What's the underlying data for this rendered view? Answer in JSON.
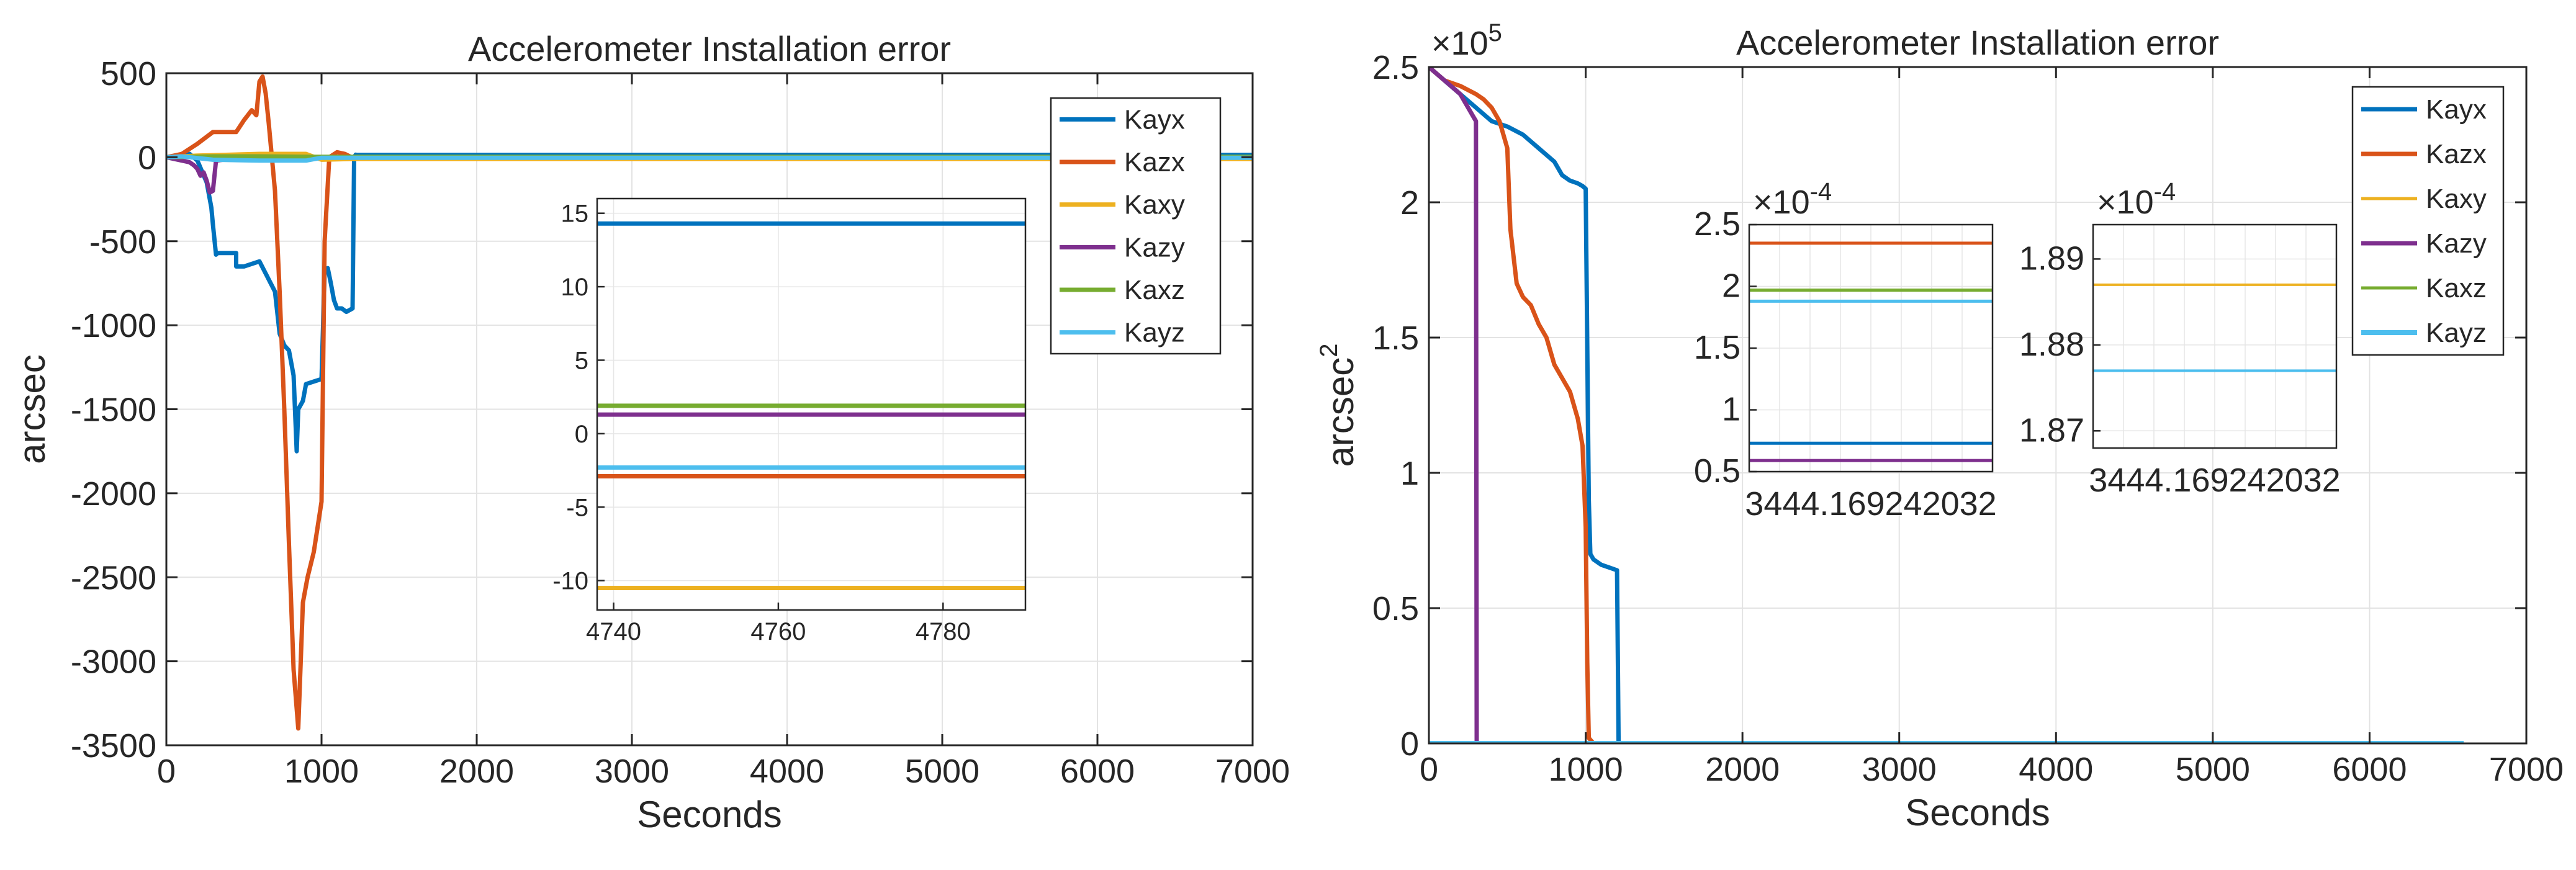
{
  "chart_data": [
    {
      "type": "line",
      "title": "Accelerometer Installation error",
      "xlabel": "Seconds",
      "ylabel": "arcsec",
      "xlim": [
        0,
        7000
      ],
      "ylim": [
        -3500,
        500
      ],
      "xticks": [
        0,
        1000,
        2000,
        3000,
        4000,
        5000,
        6000,
        7000
      ],
      "xtick_labels": [
        "0",
        "1000",
        "2000",
        "3000",
        "4000",
        "5000",
        "6000",
        "7000"
      ],
      "yticks": [
        -3500,
        -3000,
        -2500,
        -2000,
        -1500,
        -1000,
        -500,
        0,
        500
      ],
      "ytick_labels": [
        "-3500",
        "-3000",
        "-2500",
        "-2000",
        "-1500",
        "-1000",
        "-500",
        "0",
        "500"
      ],
      "grid": true,
      "legend": "top-right",
      "series": [
        {
          "name": "Kayx",
          "color": "#0072BD",
          "width": 7,
          "x": [
            0,
            150,
            200,
            260,
            290,
            300,
            320,
            330,
            450,
            450,
            500,
            600,
            700,
            730,
            760,
            790,
            800,
            810,
            820,
            840,
            850,
            880,
            900,
            1000,
            1020,
            1040,
            1060,
            1080,
            1100,
            1130,
            1160,
            1200,
            1210,
            1220,
            1230,
            1400,
            2000,
            4000,
            6000,
            7000
          ],
          "y": [
            0,
            20,
            -20,
            -150,
            -300,
            -400,
            -580,
            -570,
            -570,
            -650,
            -650,
            -620,
            -800,
            -1050,
            -1120,
            -1150,
            -1200,
            -1250,
            -1300,
            -1750,
            -1500,
            -1450,
            -1350,
            -1320,
            -680,
            -660,
            -750,
            -850,
            -900,
            -900,
            -920,
            -900,
            0,
            15,
            14,
            14,
            14,
            14,
            14,
            14
          ]
        },
        {
          "name": "Kazx",
          "color": "#D95319",
          "width": 7,
          "x": [
            0,
            100,
            200,
            300,
            400,
            450,
            500,
            550,
            580,
            600,
            620,
            640,
            660,
            680,
            700,
            730,
            760,
            790,
            820,
            850,
            880,
            910,
            950,
            1000,
            1020,
            1050,
            1100,
            1150,
            1200,
            1400,
            2000,
            4000,
            6000,
            7000
          ],
          "y": [
            0,
            20,
            80,
            150,
            150,
            150,
            220,
            280,
            250,
            450,
            480,
            380,
            200,
            0,
            -200,
            -800,
            -1500,
            -2300,
            -3050,
            -3400,
            -2650,
            -2500,
            -2350,
            -2050,
            -500,
            0,
            30,
            20,
            -3,
            -3,
            -3,
            -3,
            -3,
            -3
          ]
        },
        {
          "name": "Kaxy",
          "color": "#EDB120",
          "width": 7,
          "x": [
            0,
            200,
            600,
            900,
            1000,
            1200,
            1400,
            2000,
            4000,
            6000,
            7000
          ],
          "y": [
            0,
            10,
            20,
            20,
            -15,
            -10,
            -10,
            -10,
            -10,
            -10,
            -10
          ]
        },
        {
          "name": "Kazy",
          "color": "#7E2F8E",
          "width": 7,
          "x": [
            0,
            150,
            180,
            200,
            220,
            240,
            260,
            280,
            300,
            320,
            500,
            1000,
            2000,
            7000
          ],
          "y": [
            0,
            -30,
            -50,
            -70,
            -110,
            -90,
            -140,
            -210,
            -200,
            -20,
            0,
            1,
            1,
            1
          ]
        },
        {
          "name": "Kaxz",
          "color": "#77AC30",
          "width": 7,
          "x": [
            0,
            300,
            600,
            1000,
            2000,
            7000
          ],
          "y": [
            0,
            5,
            5,
            2,
            2,
            2
          ]
        },
        {
          "name": "Kayz",
          "color": "#4DBEEE",
          "width": 7,
          "x": [
            0,
            100,
            300,
            600,
            900,
            1000,
            1200,
            2000,
            4000,
            7000
          ],
          "y": [
            0,
            5,
            -15,
            -20,
            -20,
            -3,
            -3,
            -3,
            -3,
            -3
          ]
        }
      ],
      "inset": {
        "xlim": [
          4738,
          4790
        ],
        "ylim": [
          -12,
          16
        ],
        "xticks": [
          4740,
          4760,
          4780
        ],
        "xtick_labels": [
          "4740",
          "4760",
          "4780"
        ],
        "yticks": [
          -10,
          -5,
          0,
          5,
          10,
          15
        ],
        "ytick_labels": [
          "-10",
          "-5",
          "0",
          "5",
          "10",
          "15"
        ],
        "values": {
          "Kayx": 14.3,
          "Kazx": -2.9,
          "Kaxy": -10.5,
          "Kazy": 1.3,
          "Kaxz": 1.9,
          "Kayz": -2.3
        }
      }
    },
    {
      "type": "line",
      "title": "Accelerometer Installation error",
      "xlabel": "Seconds",
      "ylabel": "arcsec",
      "ylabel_superscript": "2",
      "y_multiplier": "×10",
      "y_multiplier_exp": "5",
      "xlim": [
        0,
        7000
      ],
      "ylim": [
        0,
        2.5
      ],
      "xticks": [
        0,
        1000,
        2000,
        3000,
        4000,
        5000,
        6000,
        7000
      ],
      "xtick_labels": [
        "0",
        "1000",
        "2000",
        "3000",
        "4000",
        "5000",
        "6000",
        "7000"
      ],
      "yticks": [
        0,
        0.5,
        1,
        1.5,
        2,
        2.5
      ],
      "ytick_labels": [
        "0",
        "0.5",
        "1",
        "1.5",
        "2",
        "2.5"
      ],
      "grid": true,
      "legend": "top-right",
      "series": [
        {
          "name": "Kayx",
          "color": "#0072BD",
          "width": 7,
          "x": [
            0,
            100,
            200,
            300,
            400,
            500,
            600,
            700,
            800,
            850,
            900,
            950,
            980,
            1000,
            1020,
            1030,
            1050,
            1100,
            1150,
            1200,
            1210,
            1220,
            6600
          ],
          "y": [
            2.5,
            2.45,
            2.4,
            2.35,
            2.3,
            2.28,
            2.25,
            2.2,
            2.15,
            2.1,
            2.08,
            2.07,
            2.06,
            2.05,
            0.9,
            0.7,
            0.68,
            0.66,
            0.65,
            0.64,
            0.0,
            0.0,
            0.0
          ]
        },
        {
          "name": "Kazx",
          "color": "#D95319",
          "width": 7,
          "x": [
            0,
            100,
            200,
            300,
            350,
            400,
            450,
            500,
            520,
            560,
            600,
            650,
            700,
            750,
            800,
            850,
            900,
            950,
            980,
            1000,
            1010,
            1020,
            1050,
            6600
          ],
          "y": [
            2.5,
            2.45,
            2.43,
            2.4,
            2.38,
            2.35,
            2.3,
            2.2,
            1.9,
            1.7,
            1.65,
            1.62,
            1.55,
            1.5,
            1.4,
            1.35,
            1.3,
            1.2,
            1.1,
            0.8,
            0.3,
            0.02,
            0.0,
            0.0
          ]
        },
        {
          "name": "Kaxy",
          "color": "#EDB120",
          "width": 5,
          "x": [
            0,
            1200,
            6600
          ],
          "y": [
            0,
            0,
            0
          ]
        },
        {
          "name": "Kazy",
          "color": "#7E2F8E",
          "width": 7,
          "x": [
            0,
            100,
            200,
            250,
            280,
            300,
            305,
            320,
            6600
          ],
          "y": [
            2.5,
            2.45,
            2.4,
            2.35,
            2.32,
            2.3,
            0.0,
            0.0,
            0.0
          ]
        },
        {
          "name": "Kaxz",
          "color": "#77AC30",
          "width": 5,
          "x": [
            0,
            6600
          ],
          "y": [
            0,
            0
          ]
        },
        {
          "name": "Kayz",
          "color": "#4DBEEE",
          "width": 8,
          "x": [
            0,
            6600
          ],
          "y": [
            0,
            0
          ]
        }
      ],
      "inset1": {
        "multiplier": "×10",
        "multiplier_exp": "-4",
        "ylim": [
          0.5,
          2.5
        ],
        "yticks": [
          0.5,
          1,
          1.5,
          2,
          2.5
        ],
        "ytick_labels": [
          "0.5",
          "1",
          "1.5",
          "2",
          "2.5"
        ],
        "xtick_label": "3444.169242032",
        "values": {
          "Kazx": 2.35,
          "Kaxz": 1.97,
          "Kayz": 1.88,
          "Kayx": 0.73,
          "Kazy": 0.59
        }
      },
      "inset2": {
        "multiplier": "×10",
        "multiplier_exp": "-4",
        "ylim": [
          1.868,
          1.894
        ],
        "yticks": [
          1.87,
          1.88,
          1.89
        ],
        "ytick_labels": [
          "1.87",
          "1.88",
          "1.89"
        ],
        "xtick_label": "3444.169242032",
        "values": {
          "Kaxy": 1.887,
          "Kayz": 1.877
        }
      }
    }
  ]
}
